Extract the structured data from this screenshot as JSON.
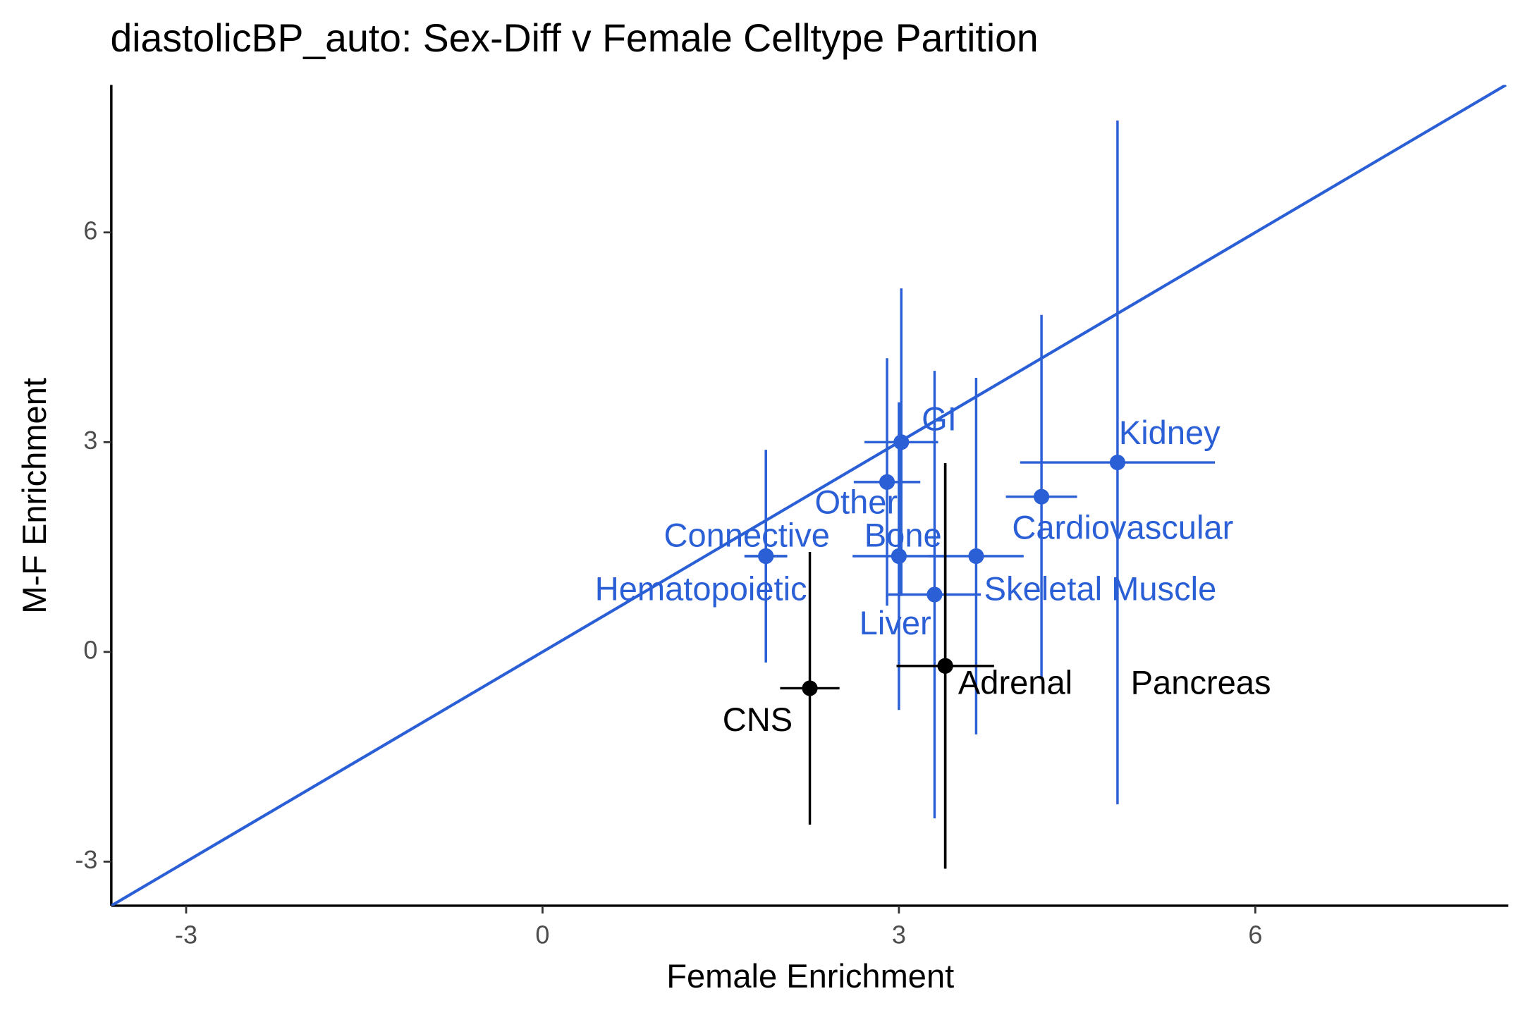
{
  "chart_data": {
    "type": "scatter",
    "title": "diastolicBP_auto: Sex-Diff v Female Celltype Partition",
    "x_label": "Female Enrichment",
    "y_label": "M-F Enrichment",
    "xlim": [
      -3.63,
      8.13
    ],
    "ylim": [
      -3.63,
      8.11
    ],
    "xticks": [
      -3,
      0,
      3,
      6
    ],
    "yticks": [
      -3,
      0,
      3,
      6
    ],
    "identity_line": true,
    "identity_line_color": "#2a5fd6",
    "points": [
      {
        "label": "GI",
        "x": 3.02,
        "y": 3.0,
        "xerr": 0.31,
        "yerr": 2.2,
        "color": "#2a5fd6"
      },
      {
        "label": "Kidney",
        "x": 4.84,
        "y": 2.71,
        "xerr": 0.82,
        "yerr": 4.89,
        "color": "#2a5fd6"
      },
      {
        "label": "Other",
        "x": 2.9,
        "y": 2.43,
        "xerr": 0.28,
        "yerr": 1.77,
        "color": "#2a5fd6"
      },
      {
        "label": "Connective",
        "x": 1.88,
        "y": 1.37,
        "xerr": 0.18,
        "yerr": 1.52,
        "color": "#2a5fd6"
      },
      {
        "label": "Bone",
        "x": 3.0,
        "y": 1.37,
        "xerr": 0.39,
        "yerr": 2.2,
        "color": "#2a5fd6"
      },
      {
        "label": "Cardiovascular",
        "x": 4.2,
        "y": 2.22,
        "xerr": 0.3,
        "yerr": 2.6,
        "color": "#2a5fd6"
      },
      {
        "label": "Hematopoietic",
        "x": 1.88,
        "y": 1.37,
        "xerr": 0.18,
        "yerr": 1.52,
        "color": "#2a5fd6"
      },
      {
        "label": "Skeletal Muscle",
        "x": 3.65,
        "y": 1.37,
        "xerr": 0.4,
        "yerr": 2.55,
        "color": "#2a5fd6"
      },
      {
        "label": "Liver",
        "x": 3.3,
        "y": 0.82,
        "xerr": 0.39,
        "yerr": 3.2,
        "color": "#2a5fd6"
      },
      {
        "label": "CNS",
        "x": 2.25,
        "y": -0.52,
        "xerr": 0.25,
        "yerr": 1.95,
        "color": "#000000"
      },
      {
        "label": "Adrenal",
        "x": 3.39,
        "y": -0.2,
        "xerr": 0.41,
        "yerr": 2.9,
        "color": "#000000"
      },
      {
        "label": "Pancreas",
        "x": 3.39,
        "y": -0.2,
        "xerr": 0.41,
        "yerr": 2.9,
        "color": "#000000"
      }
    ]
  }
}
